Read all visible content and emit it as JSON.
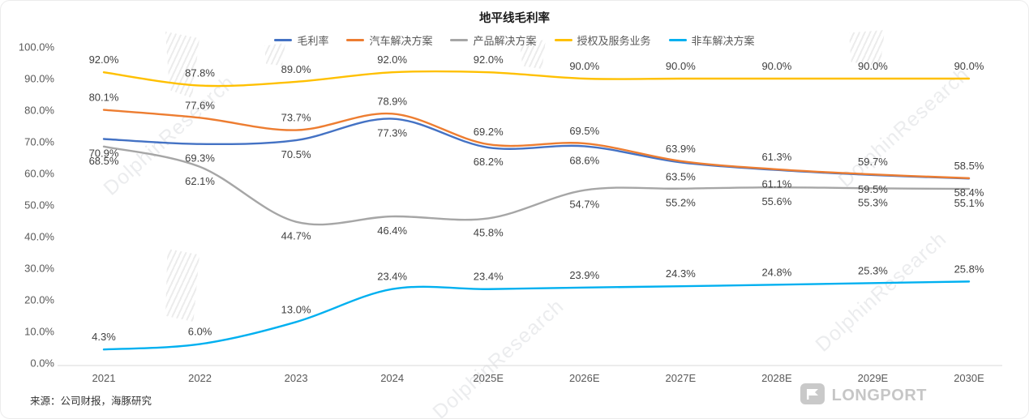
{
  "title": "地平线毛利率",
  "source": "来源：公司财报，海豚研究",
  "watermark": "DolphinResearch",
  "logo": "LONGPORT",
  "chart_data": {
    "type": "line",
    "categories": [
      "2021",
      "2022",
      "2023",
      "2024",
      "2025E",
      "2026E",
      "2027E",
      "2028E",
      "2029E",
      "2030E"
    ],
    "series": [
      {
        "name": "毛利率",
        "color": "#4472C4",
        "label_position": "below",
        "values": [
          70.9,
          69.3,
          70.5,
          77.3,
          68.2,
          68.6,
          63.5,
          61.1,
          59.5,
          58.4
        ]
      },
      {
        "name": "汽车解决方案",
        "color": "#ED7D31",
        "label_position": "above",
        "values": [
          80.1,
          77.6,
          73.7,
          78.9,
          69.2,
          69.5,
          63.9,
          61.3,
          59.7,
          58.5
        ]
      },
      {
        "name": "产品解决方案",
        "color": "#A6A6A6",
        "label_position": "below",
        "values": [
          68.5,
          62.1,
          44.7,
          46.4,
          45.8,
          54.7,
          55.2,
          55.6,
          55.3,
          55.1
        ]
      },
      {
        "name": "授权及服务业务",
        "color": "#FFC000",
        "label_position": "above",
        "values": [
          92.0,
          87.8,
          89.0,
          92.0,
          92.0,
          90.0,
          90.0,
          90.0,
          90.0,
          90.0
        ]
      },
      {
        "name": "非车解决方案",
        "color": "#00B0F0",
        "label_position": "above",
        "values": [
          4.3,
          6.0,
          13.0,
          23.4,
          23.4,
          23.9,
          24.3,
          24.8,
          25.3,
          25.8
        ]
      }
    ],
    "ylim": [
      0,
      100
    ],
    "ytick_step": 10,
    "ytick_format": "percent1",
    "grid": false,
    "legend_position": "top",
    "smooth_lines": true
  }
}
